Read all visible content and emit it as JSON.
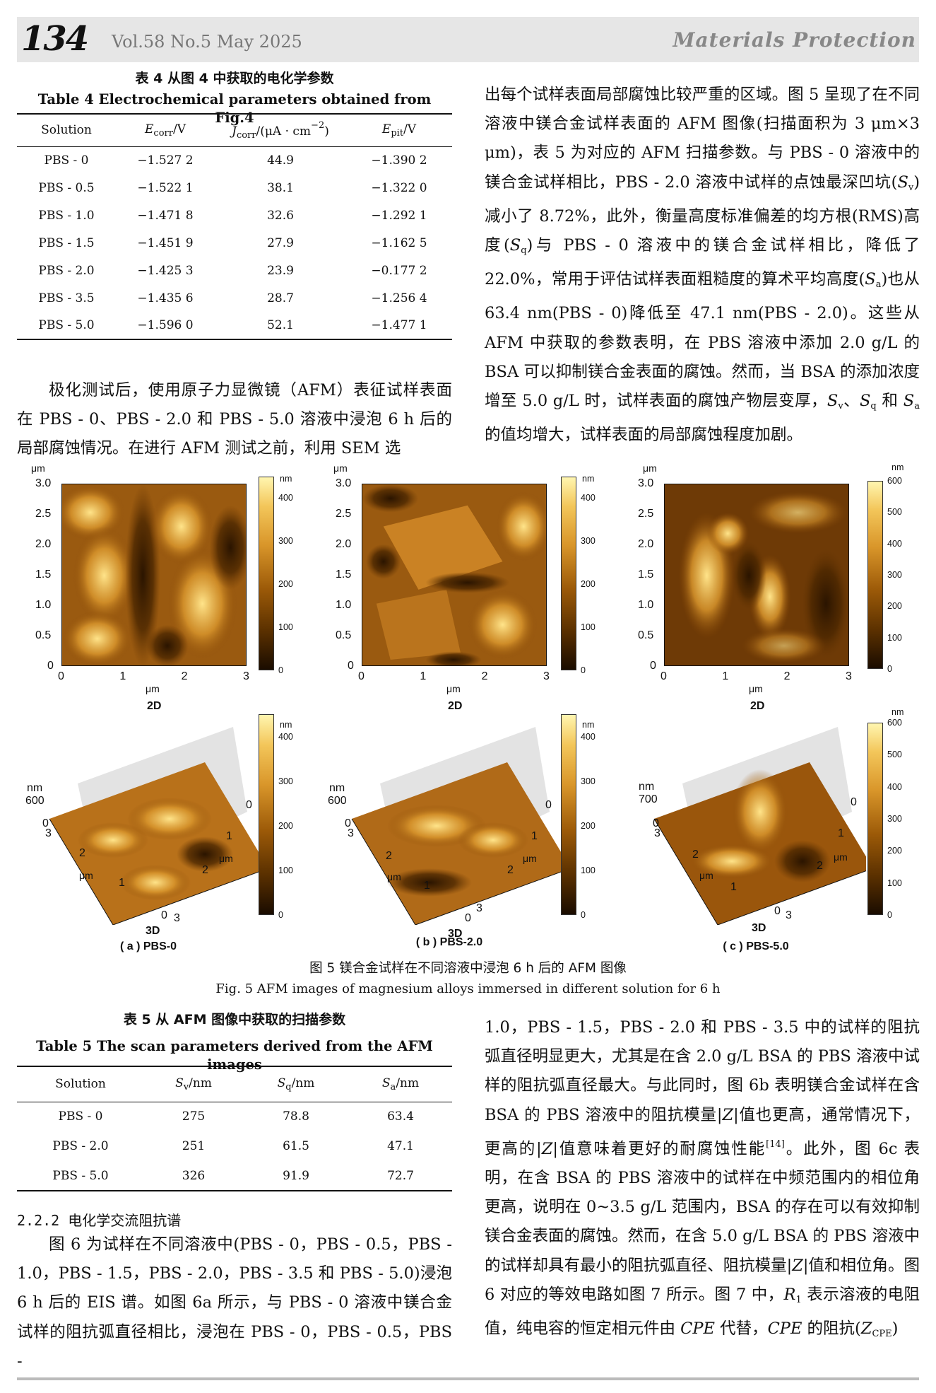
{
  "header": {
    "page_number": "134",
    "volume_info": "Vol.58  No.5  May 2025",
    "journal": "Materials Protection"
  },
  "table4": {
    "caption_cn": "表 4   从图 4 中获取的电化学参数",
    "caption_en": "Table 4    Electrochemical parameters obtained from Fig.4",
    "headers": {
      "solution": "Solution",
      "ecorr_main": "E",
      "ecorr_sub": "corr",
      "ecorr_unit": "/V",
      "jcorr_main": "J",
      "jcorr_sub": "corr",
      "jcorr_unit": "/(μA · cm",
      "jcorr_exp": "−2",
      "jcorr_close": ")",
      "epit_main": "E",
      "epit_sub": "pit",
      "epit_unit": "/V"
    },
    "rows": [
      {
        "solution": "PBS - 0",
        "ecorr": "−1.527 2",
        "jcorr": "44.9",
        "epit": "−1.390 2"
      },
      {
        "solution": "PBS - 0.5",
        "ecorr": "−1.522 1",
        "jcorr": "38.1",
        "epit": "−1.322 0"
      },
      {
        "solution": "PBS - 1.0",
        "ecorr": "−1.471 8",
        "jcorr": "32.6",
        "epit": "−1.292 1"
      },
      {
        "solution": "PBS - 1.5",
        "ecorr": "−1.451 9",
        "jcorr": "27.9",
        "epit": "−1.162 5"
      },
      {
        "solution": "PBS - 2.0",
        "ecorr": "−1.425 3",
        "jcorr": "23.9",
        "epit": "−0.177 2"
      },
      {
        "solution": "PBS - 3.5",
        "ecorr": "−1.435 6",
        "jcorr": "28.7",
        "epit": "−1.256 4"
      },
      {
        "solution": "PBS - 5.0",
        "ecorr": "−1.596 0",
        "jcorr": "52.1",
        "epit": "−1.477 1"
      }
    ]
  },
  "text": {
    "left_p1": "极化测试后，使用原子力显微镜（AFM）表征试样表面在 PBS - 0、PBS - 2.0 和 PBS - 5.0 溶液中浸泡 6 h 后的局部腐蚀情况。在进行 AFM 测试之前，利用 SEM 选",
    "right_p1_a": "出每个试样表面局部腐蚀比较严重的区域。图 5 呈现了在不同溶液中镁合金试样表面的 AFM 图像(扫描面积为 3 μm×3 μm)，表 5 为对应的 AFM 扫描参数。与 PBS - 0 溶液中的镁合金试样相比，PBS - 2.0 溶液中试样的点蚀最深凹坑(",
    "sv_main": "S",
    "sv_sub": "v",
    "right_p1_b": ")减小了 8.72%，此外，衡量高度标准偏差的均方根(RMS)高度(",
    "sq_main": "S",
    "sq_sub": "q",
    "right_p1_c": ")与 PBS - 0 溶液中的镁合金试样相比，降低了 22.0%，常用于评估试样表面粗糙度的算术平均高度(",
    "sa_main": "S",
    "sa_sub": "a",
    "right_p1_d": ")也从 63.4 nm(PBS - 0)降低至 47.1 nm(PBS - 2.0)。这些从 AFM 中获取的参数表明，在 PBS 溶液中添加 2.0 g/L 的 BSA 可以抑制镁合金表面的腐蚀。然而，当 BSA 的添加浓度增至 5.0 g/L 时，试样表面的腐蚀产物层变厚，",
    "right_p1_e": "、",
    "right_p1_f": " 和 ",
    "right_p1_g": " 的值均增大，试样表面的局部腐蚀程度加剧。",
    "section_title": "2.2.2   电化学交流阻抗谱",
    "left_p2": "图 6 为试样在不同溶液中(PBS - 0，PBS - 0.5，PBS - 1.0，PBS - 1.5，PBS - 2.0，PBS - 3.5 和 PBS - 5.0)浸泡 6 h 后的 EIS 谱。如图 6a 所示，与 PBS - 0 溶液中镁合金试样的阻抗弧直径相比，浸泡在 PBS - 0，PBS - 0.5，PBS -",
    "right_p2_a": "1.0，PBS - 1.5，PBS - 2.0 和 PBS - 3.5 中的试样的阻抗弧直径明显更大，尤其是在含 2.0 g/L BSA 的 PBS 溶液中试样的阻抗弧直径最大。与此同时，图 6b 表明镁合金试样在含 BSA 的 PBS 溶液中的阻抗模量",
    "z_sym": "|Z|",
    "right_p2_b": "值也更高，通常情况下，更高的",
    "right_p2_c": "值意味着更好的耐腐蚀性能",
    "ref14": "[14]",
    "right_p2_d": "。此外，图 6c 表明，在含 BSA 的 PBS 溶液中的试样在中频范围内的相位角更高，说明在 0~3.5 g/L 范围内，BSA 的存在可以有效抑制镁合金表面的腐蚀。然而，在含 5.0 g/L BSA 的 PBS 溶液中的试样却具有最小的阻抗弧直径、阻抗模量",
    "right_p2_e": "值和相位角。图 6 对应的等效电路如图 7 所示。图 7 中，",
    "r1_main": "R",
    "r1_sub": "1",
    "right_p2_f": " 表示溶液的电阻值，纯电容的恒定相元件由 ",
    "cpe_it": "CPE",
    "right_p2_g": " 代替，",
    "right_p2_h": " 的阻抗(",
    "zcpe_main": "Z",
    "zcpe_sub": "CPE",
    "right_p2_i": ")"
  },
  "figure5": {
    "caption_cn": "图 5   镁合金试样在不同溶液中浸泡 6 h 后的 AFM 图像",
    "caption_en": "Fig. 5    AFM images of magnesium alloys immersed in different solution for 6 h",
    "label_2d": "2D",
    "label_3d": "3D",
    "unit_um": "μm",
    "unit_nm": "nm",
    "y_ticks": [
      "3.0",
      "2.5",
      "2.0",
      "1.5",
      "1.0",
      "0.5",
      "0"
    ],
    "x_ticks": [
      "0",
      "1",
      "2",
      "3"
    ],
    "panels": [
      {
        "label": "( a ) PBS-0",
        "cbar_ticks": [
          "400",
          "300",
          "200",
          "100",
          "0"
        ],
        "z_top": "600"
      },
      {
        "label": "( b ) PBS-2.0",
        "cbar_ticks": [
          "400",
          "300",
          "200",
          "100",
          "0"
        ],
        "z_top": "600"
      },
      {
        "label": "( c ) PBS-5.0",
        "cbar_ticks": [
          "600",
          "500",
          "400",
          "300",
          "200",
          "100",
          "0"
        ],
        "z_top": "700"
      }
    ],
    "axis3d_ticks": {
      "zero": "0",
      "one": "1",
      "two": "2",
      "three": "3"
    }
  },
  "table5": {
    "caption_cn": "表 5   从 AFM 图像中获取的扫描参数",
    "caption_en": "Table 5    The scan parameters derived from the AFM images",
    "headers": {
      "solution": "Solution",
      "sv_main": "S",
      "sv_sub": "v",
      "unit": "/nm",
      "sq_main": "S",
      "sq_sub": "q",
      "sa_main": "S",
      "sa_sub": "a"
    },
    "rows": [
      {
        "solution": "PBS - 0",
        "sv": "275",
        "sq": "78.8",
        "sa": "63.4"
      },
      {
        "solution": "PBS - 2.0",
        "sv": "251",
        "sq": "61.5",
        "sa": "47.1"
      },
      {
        "solution": "PBS - 5.0",
        "sv": "326",
        "sq": "91.9",
        "sa": "72.7"
      }
    ]
  }
}
